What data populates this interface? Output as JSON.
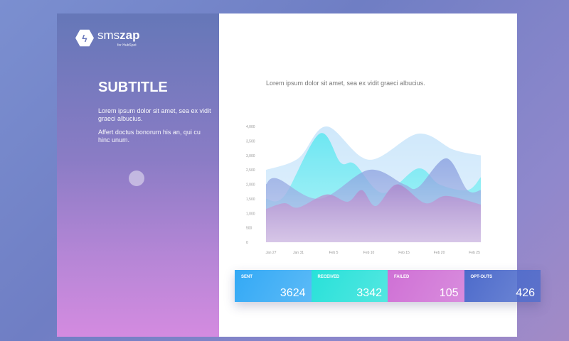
{
  "logo": {
    "name_light": "sms",
    "name_bold": "zap",
    "tagline": "for HubSpot",
    "icon": "lightning-bolt-icon"
  },
  "left": {
    "title": "SUBTITLE",
    "paragraph1": "Lorem ipsum dolor sit amet, sea ex vidit graeci albucius.",
    "paragraph2": "Affert doctus bonorum his an, qui cu hinc unum."
  },
  "main": {
    "lead": "Lorem ipsum dolor sit amet, sea ex vidit graeci albucius."
  },
  "chart_data": {
    "type": "area",
    "ylim": [
      0,
      4000
    ],
    "yticks": [
      "0",
      "500",
      "1,000",
      "1,500",
      "2,000",
      "2,500",
      "3,000",
      "3,500",
      "4,000"
    ],
    "xticks": [
      "Jan 27",
      "Jan 31",
      "Feb 5",
      "Feb 10",
      "Feb 15",
      "Feb 20",
      "Feb 25"
    ],
    "grid": false,
    "series": [
      {
        "color": "#bfe0fa",
        "points": [
          [
            "Jan 26",
            2500
          ],
          [
            "Jan 31",
            2900
          ],
          [
            "Feb 4",
            4000
          ],
          [
            "Feb 10",
            2850
          ],
          [
            "Feb 17",
            3750
          ],
          [
            "Feb 22",
            3200
          ],
          [
            "Feb 26",
            3000
          ]
        ]
      },
      {
        "color": "#44e6ee",
        "points": [
          [
            "Jan 26",
            1500
          ],
          [
            "Jan 29",
            1600
          ],
          [
            "Feb 3",
            3750
          ],
          [
            "Feb 6",
            2750
          ],
          [
            "Feb 8",
            2700
          ],
          [
            "Feb 12",
            1700
          ],
          [
            "Feb 17",
            2550
          ],
          [
            "Feb 20",
            2000
          ],
          [
            "Feb 24",
            1800
          ],
          [
            "Feb 26",
            2250
          ]
        ]
      },
      {
        "color": "#7f96dc",
        "points": [
          [
            "Jan 26",
            2000
          ],
          [
            "Jan 28",
            2200
          ],
          [
            "Feb 3",
            1500
          ],
          [
            "Feb 10",
            2500
          ],
          [
            "Feb 15",
            2000
          ],
          [
            "Feb 17",
            1900
          ],
          [
            "Feb 21",
            2900
          ],
          [
            "Feb 24",
            1800
          ],
          [
            "Feb 26",
            1800
          ]
        ]
      },
      {
        "color": "#b07dc8",
        "points": [
          [
            "Jan 26",
            1150
          ],
          [
            "Jan 29",
            1350
          ],
          [
            "Jan 31",
            1200
          ],
          [
            "Feb 4",
            1650
          ],
          [
            "Feb 7",
            1400
          ],
          [
            "Feb 9",
            1800
          ],
          [
            "Feb 11",
            1250
          ],
          [
            "Feb 14",
            2000
          ],
          [
            "Feb 18",
            1350
          ],
          [
            "Feb 21",
            1600
          ],
          [
            "Feb 26",
            1300
          ]
        ]
      }
    ]
  },
  "stats": [
    {
      "label": "SENT",
      "value": "3624",
      "color": "#33a9f5"
    },
    {
      "label": "RECEIVED",
      "value": "3342",
      "color": "#28e1d9"
    },
    {
      "label": "FAILED",
      "value": "105",
      "color": "#cf70d5"
    },
    {
      "label": "OPT-OUTS",
      "value": "426",
      "color": "#4d6bcb"
    }
  ]
}
